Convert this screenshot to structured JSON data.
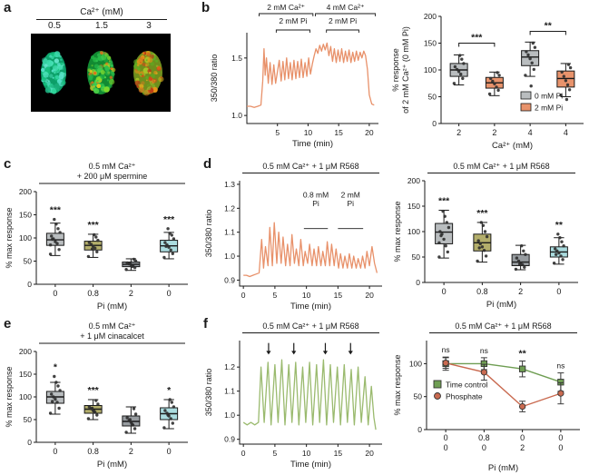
{
  "panels": {
    "a": "a",
    "b": "b",
    "c": "c",
    "d": "d",
    "e": "e",
    "f": "f"
  },
  "panel_a": {
    "title": "Ca²⁺ (mM)",
    "concentrations": [
      "0.5",
      "1.5",
      "3"
    ],
    "cells": [
      {
        "conc": "0.5",
        "rx": 14,
        "ry": 23,
        "palette": [
          "#0c9e68",
          "#17c07e",
          "#2fd49a",
          "#4fe2bc",
          "#6cead2",
          "#1fb483",
          "#3ddcae",
          "#57e0c8"
        ]
      },
      {
        "conc": "1.5",
        "rx": 15,
        "ry": 24,
        "palette": [
          "#128a32",
          "#22b446",
          "#35cc58",
          "#4ed648",
          "#7ed82e",
          "#aad626",
          "#e8c81e",
          "#e0701c",
          "#30c050",
          "#28bc48"
        ]
      },
      {
        "conc": "3",
        "rx": 16,
        "ry": 24,
        "palette": [
          "#6f8f1d",
          "#8ab82a",
          "#a6c426",
          "#d8a81c",
          "#e07820",
          "#d44518",
          "#c22f12",
          "#5cb024",
          "#e89418"
        ]
      }
    ]
  },
  "chart_data": [
    {
      "id": "b_trace",
      "type": "line",
      "panel": "b",
      "ylabel": "350/380 ratio",
      "xlabel": "Time (min)",
      "xlim": [
        0,
        21.5
      ],
      "ylim": [
        0.93,
        1.72
      ],
      "xticks": [
        5,
        10,
        15,
        20
      ],
      "xtick_labels": [
        "5",
        "10",
        "15",
        "20"
      ],
      "yticks": [
        1.0,
        1.5
      ],
      "ytick_labels": [
        "1.0",
        "1.5"
      ],
      "color": "#e8916a",
      "top_annotations": [
        {
          "text": "2 mM Ca²⁺",
          "x1": 2,
          "x2": 10.8,
          "row": 0
        },
        {
          "text": "4 mM Ca²⁺",
          "x1": 11.2,
          "x2": 21,
          "row": 0
        },
        {
          "text": "2 mM Pi",
          "x1": 4.8,
          "x2": 10.3,
          "row": 1
        },
        {
          "text": "2 mM Pi",
          "x1": 13,
          "x2": 18.3,
          "row": 1
        }
      ],
      "x": [
        0,
        0.6,
        1.2,
        1.8,
        2.3,
        2.6,
        2.8,
        3.0,
        3.2,
        3.5,
        3.8,
        4.1,
        4.4,
        4.7,
        5.0,
        5.3,
        5.6,
        5.9,
        6.2,
        6.5,
        6.8,
        7.1,
        7.4,
        7.7,
        8.0,
        8.3,
        8.6,
        8.9,
        9.2,
        9.5,
        9.8,
        10.1,
        10.4,
        10.7,
        11.0,
        11.3,
        11.6,
        11.9,
        12.2,
        12.5,
        12.8,
        13.1,
        13.4,
        13.7,
        14.0,
        14.3,
        14.6,
        14.9,
        15.2,
        15.5,
        15.8,
        16.1,
        16.4,
        16.7,
        17.0,
        17.3,
        17.6,
        17.9,
        18.2,
        18.5,
        18.8,
        19.1,
        19.4,
        19.7,
        20.0,
        20.4,
        20.8
      ],
      "y": [
        1.08,
        1.08,
        1.07,
        1.08,
        1.09,
        1.3,
        1.58,
        1.35,
        1.5,
        1.28,
        1.46,
        1.27,
        1.44,
        1.28,
        1.38,
        1.48,
        1.3,
        1.47,
        1.31,
        1.5,
        1.32,
        1.46,
        1.31,
        1.48,
        1.32,
        1.47,
        1.33,
        1.49,
        1.33,
        1.46,
        1.34,
        1.5,
        1.36,
        1.45,
        1.52,
        1.58,
        1.54,
        1.61,
        1.56,
        1.62,
        1.57,
        1.63,
        1.52,
        1.6,
        1.47,
        1.58,
        1.46,
        1.57,
        1.47,
        1.58,
        1.46,
        1.56,
        1.47,
        1.57,
        1.46,
        1.55,
        1.47,
        1.56,
        1.48,
        1.55,
        1.5,
        1.56,
        1.52,
        1.4,
        1.18,
        1.1,
        1.09
      ]
    },
    {
      "id": "b_box",
      "type": "box",
      "panel": "b",
      "ylabel_lines": [
        "% response",
        "of 2 mM Ca²⁺ (0 mM Pi)"
      ],
      "xlabel": "Ca²⁺ (mM)",
      "ylim": [
        0,
        200
      ],
      "yticks": [
        0,
        50,
        100,
        150,
        200
      ],
      "ytick_labels": [
        "0",
        "50",
        "100",
        "150",
        "200"
      ],
      "categories": [
        "2",
        "2",
        "4",
        "4"
      ],
      "boxes": [
        {
          "color": "#b9bdbf",
          "whislo": 72,
          "q1": 88,
          "med": 100,
          "q3": 112,
          "whishi": 128,
          "points": [
            75,
            84,
            92,
            97,
            101,
            106,
            112,
            120,
            127
          ]
        },
        {
          "color": "#e8936c",
          "whislo": 52,
          "q1": 66,
          "med": 76,
          "q3": 86,
          "whishi": 96,
          "points": [
            55,
            62,
            68,
            74,
            79,
            84,
            90,
            95
          ]
        },
        {
          "color": "#b9bdbf",
          "whislo": 88,
          "q1": 108,
          "med": 124,
          "q3": 136,
          "whishi": 152,
          "points": [
            90,
            101,
            113,
            121,
            128,
            134,
            142,
            150,
            70
          ]
        },
        {
          "color": "#e8936c",
          "whislo": 50,
          "q1": 68,
          "med": 84,
          "q3": 98,
          "whishi": 112,
          "points": [
            53,
            63,
            72,
            80,
            88,
            96,
            104,
            110,
            45
          ]
        }
      ],
      "sig_brackets": [
        {
          "i1": 0,
          "i2": 1,
          "y": 150,
          "text": "***"
        },
        {
          "i1": 2,
          "i2": 3,
          "y": 172,
          "text": "**"
        }
      ],
      "legend": [
        {
          "label": "0 mM Pi",
          "color": "#b9bdbf"
        },
        {
          "label": "2 mM Pi",
          "color": "#e8936c"
        }
      ]
    },
    {
      "id": "c_box",
      "type": "box",
      "panel": "c",
      "title_lines": [
        "0.5 mM Ca²⁺",
        "+ 200 μM spermine"
      ],
      "title_underline": true,
      "ylabel": "% max response",
      "xlabel": "Pi (mM)",
      "ylim": [
        0,
        200
      ],
      "yticks": [
        0,
        50,
        100,
        150,
        200
      ],
      "ytick_labels": [
        "0",
        "50",
        "100",
        "150",
        "200"
      ],
      "categories": [
        "0",
        "0.8",
        "2",
        "0"
      ],
      "boxes": [
        {
          "color": "#b9bdbf",
          "whislo": 62,
          "q1": 84,
          "med": 96,
          "q3": 110,
          "whishi": 132,
          "points": [
            65,
            75,
            88,
            92,
            98,
            104,
            112,
            120,
            130,
            140,
            97,
            85
          ]
        },
        {
          "color": "#b3ae6b",
          "whislo": 58,
          "q1": 74,
          "med": 84,
          "q3": 93,
          "whishi": 108,
          "points": [
            60,
            70,
            78,
            82,
            86,
            90,
            95,
            102,
            107,
            76
          ]
        },
        {
          "color": "#979ca0",
          "whislo": 30,
          "q1": 38,
          "med": 43,
          "q3": 48,
          "whishi": 55,
          "points": [
            32,
            36,
            40,
            42,
            44,
            46,
            50,
            54,
            38,
            45
          ]
        },
        {
          "color": "#abdcdf",
          "whislo": 55,
          "q1": 70,
          "med": 83,
          "q3": 95,
          "whishi": 112,
          "points": [
            58,
            66,
            74,
            80,
            85,
            90,
            98,
            106,
            110,
            120,
            82
          ]
        }
      ],
      "sig": [
        "***",
        "***",
        "",
        "***"
      ]
    },
    {
      "id": "d_trace",
      "type": "line",
      "panel": "d",
      "title": "0.5 mM Ca²⁺ + 1 μM R568",
      "title_underline": true,
      "ylabel": "350/380 ratio",
      "xlabel": "Time (min)",
      "xlim": [
        -0.6,
        22
      ],
      "ylim": [
        0.875,
        1.315
      ],
      "xticks": [
        0,
        5,
        10,
        15,
        20
      ],
      "xtick_labels": [
        "0",
        "5",
        "10",
        "15",
        "20"
      ],
      "yticks": [
        0.9,
        1.0,
        1.1,
        1.2,
        1.3
      ],
      "ytick_labels": [
        "0.9",
        "1.0",
        "1.1",
        "1.2",
        "1.3"
      ],
      "color": "#e8916a",
      "inner_annotations": [
        {
          "lines": [
            "0.8 mM",
            "Pi"
          ],
          "x1": 9.6,
          "x2": 13.4,
          "ty": 1.245,
          "ly": 1.115
        },
        {
          "lines": [
            "2 mM",
            "Pi"
          ],
          "x1": 15.0,
          "x2": 19.0,
          "ty": 1.245,
          "ly": 1.115
        }
      ],
      "x": [
        0,
        0.5,
        1.0,
        1.5,
        2.0,
        2.5,
        2.9,
        3.2,
        3.5,
        3.9,
        4.2,
        4.6,
        4.9,
        5.3,
        5.6,
        6.0,
        6.3,
        6.7,
        7.0,
        7.4,
        7.7,
        8.1,
        8.4,
        8.8,
        9.1,
        9.5,
        9.8,
        10.2,
        10.5,
        10.9,
        11.2,
        11.6,
        11.9,
        12.3,
        12.6,
        13.0,
        13.3,
        13.7,
        14.0,
        14.4,
        14.7,
        15.1,
        15.4,
        15.8,
        16.1,
        16.5,
        16.8,
        17.2,
        17.5,
        17.9,
        18.2,
        18.6,
        18.9,
        19.3,
        19.6,
        20.0,
        20.4,
        20.8,
        21.2
      ],
      "y": [
        0.92,
        0.92,
        0.915,
        0.92,
        0.925,
        0.93,
        1.07,
        0.95,
        1.04,
        0.96,
        1.12,
        0.96,
        1.14,
        0.97,
        1.1,
        0.97,
        1.08,
        0.96,
        1.05,
        0.96,
        1.09,
        0.97,
        1.03,
        0.96,
        1.07,
        0.96,
        1.02,
        0.97,
        1.05,
        0.96,
        1.03,
        0.96,
        1.04,
        0.96,
        1.02,
        0.96,
        1.06,
        0.96,
        1.05,
        0.96,
        1.03,
        0.95,
        1.01,
        0.95,
        1.0,
        0.95,
        1.01,
        0.95,
        1.0,
        0.95,
        0.99,
        0.95,
        1.0,
        0.95,
        1.02,
        0.96,
        1.04,
        0.97,
        0.93
      ]
    },
    {
      "id": "d_box",
      "type": "box",
      "panel": "d",
      "title": "0.5 mM Ca²⁺ + 1 μM R568",
      "title_underline": true,
      "ylabel": "% max response",
      "xlabel": "Pi (mM)",
      "ylim": [
        0,
        200
      ],
      "yticks": [
        0,
        50,
        100,
        150,
        200
      ],
      "ytick_labels": [
        "0",
        "50",
        "100",
        "150",
        "200"
      ],
      "categories": [
        "0",
        "0.8",
        "2",
        "0"
      ],
      "boxes": [
        {
          "color": "#b9bdbf",
          "whislo": 48,
          "q1": 76,
          "med": 99,
          "q3": 116,
          "whishi": 142,
          "points": [
            50,
            60,
            72,
            85,
            95,
            100,
            108,
            118,
            130,
            140,
            92,
            78
          ]
        },
        {
          "color": "#b3ae6b",
          "whislo": 40,
          "q1": 62,
          "med": 78,
          "q3": 95,
          "whishi": 118,
          "points": [
            42,
            52,
            63,
            70,
            76,
            82,
            90,
            100,
            112,
            118,
            68
          ]
        },
        {
          "color": "#979ca0",
          "whislo": 25,
          "q1": 33,
          "med": 40,
          "q3": 55,
          "whishi": 73,
          "points": [
            26,
            30,
            35,
            38,
            42,
            48,
            55,
            62,
            72,
            36
          ]
        },
        {
          "color": "#abdcdf",
          "whislo": 36,
          "q1": 50,
          "med": 60,
          "q3": 70,
          "whishi": 88,
          "points": [
            38,
            45,
            52,
            58,
            62,
            66,
            72,
            80,
            88,
            95,
            55
          ]
        }
      ],
      "sig": [
        "***",
        "***",
        "",
        "**"
      ]
    },
    {
      "id": "e_box",
      "type": "box",
      "panel": "e",
      "title_lines": [
        "0.5 mM Ca²⁺",
        "+ 1 μM cinacalcet"
      ],
      "title_underline": true,
      "ylabel": "% max response",
      "xlabel": "Pi (mM)",
      "ylim": [
        0,
        200
      ],
      "yticks": [
        0,
        50,
        100,
        150,
        200
      ],
      "ytick_labels": [
        "0",
        "50",
        "100",
        "150",
        "200"
      ],
      "categories": [
        "0",
        "0.8",
        "2",
        "0"
      ],
      "boxes": [
        {
          "color": "#b9bdbf",
          "whislo": 62,
          "q1": 86,
          "med": 100,
          "q3": 112,
          "whishi": 132,
          "points": [
            64,
            75,
            88,
            95,
            100,
            106,
            114,
            124,
            132,
            145,
            90
          ]
        },
        {
          "color": "#b3ae6b",
          "whislo": 50,
          "q1": 64,
          "med": 73,
          "q3": 81,
          "whishi": 94,
          "points": [
            52,
            60,
            66,
            70,
            74,
            78,
            84,
            92,
            68,
            75
          ]
        },
        {
          "color": "#979ca0",
          "whislo": 20,
          "q1": 36,
          "med": 46,
          "q3": 58,
          "whishi": 78,
          "points": [
            22,
            30,
            38,
            44,
            48,
            54,
            62,
            74,
            40,
            50
          ]
        },
        {
          "color": "#abdcdf",
          "whislo": 30,
          "q1": 50,
          "med": 63,
          "q3": 76,
          "whishi": 94,
          "points": [
            32,
            42,
            52,
            58,
            64,
            70,
            78,
            88,
            94,
            60
          ]
        }
      ],
      "sig": [
        "*",
        "***",
        "",
        "*"
      ]
    },
    {
      "id": "f_trace",
      "type": "line",
      "panel": "f",
      "title": "0.5 mM Ca²⁺ + 1 μM R568",
      "title_underline": true,
      "ylabel": "350/380 ratio",
      "xlabel": "Time (min)",
      "xlim": [
        -0.6,
        22
      ],
      "ylim": [
        0.88,
        1.31
      ],
      "xticks": [
        0,
        5,
        10,
        15,
        20
      ],
      "xtick_labels": [
        "0",
        "5",
        "10",
        "15",
        "20"
      ],
      "yticks": [
        0.9,
        1.0,
        1.1,
        1.2
      ],
      "ytick_labels": [
        "0.9",
        "1.0",
        "1.1",
        "1.2"
      ],
      "color": "#9aba6e",
      "arrows": [
        4,
        8,
        13,
        17
      ],
      "arrow_y": [
        1.3,
        1.252
      ],
      "x": [
        0,
        0.6,
        1.2,
        1.8,
        2.4,
        2.8,
        3.3,
        3.9,
        4.4,
        5.0,
        5.5,
        6.1,
        6.6,
        7.2,
        7.7,
        8.3,
        8.8,
        9.4,
        9.9,
        10.5,
        11.0,
        11.6,
        12.1,
        12.7,
        13.2,
        13.8,
        14.3,
        14.9,
        15.4,
        16.0,
        16.5,
        17.1,
        17.6,
        18.2,
        18.7,
        19.3,
        19.8,
        20.3,
        20.7,
        21.0
      ],
      "y": [
        0.97,
        0.96,
        0.97,
        0.96,
        0.97,
        1.2,
        0.97,
        1.22,
        0.96,
        1.21,
        0.97,
        1.23,
        0.96,
        1.21,
        0.97,
        1.22,
        0.96,
        1.2,
        0.97,
        1.22,
        0.96,
        1.21,
        0.97,
        1.23,
        0.96,
        1.21,
        0.97,
        1.2,
        0.96,
        1.21,
        0.97,
        1.19,
        0.96,
        1.2,
        0.97,
        1.16,
        0.96,
        1.12,
        0.99,
        0.94
      ]
    },
    {
      "id": "f_line",
      "type": "errline",
      "panel": "f",
      "title": "0.5 mM Ca²⁺ + 1 μM R568",
      "title_underline": true,
      "ylabel": "% max response",
      "xlabel": "Pi (mM)",
      "ylim": [
        0,
        135
      ],
      "yticks": [
        0,
        50,
        100
      ],
      "ytick_labels": [
        "0",
        "50",
        "100"
      ],
      "xtick_rows": [
        [
          "0",
          "0.8",
          "0",
          "0"
        ],
        [
          "0",
          "0",
          "2",
          "0"
        ]
      ],
      "series": [
        {
          "name": "Time control",
          "marker": "square",
          "color": "#6f9e53",
          "values": [
            100,
            100,
            92,
            72
          ],
          "err": [
            10,
            9,
            12,
            14
          ]
        },
        {
          "name": "Phosphate",
          "marker": "circle",
          "color": "#c96a50",
          "values": [
            101,
            87,
            35,
            55
          ],
          "err": [
            8,
            12,
            8,
            16
          ]
        }
      ],
      "sig": [
        "ns",
        "ns",
        "**",
        "ns"
      ]
    }
  ]
}
